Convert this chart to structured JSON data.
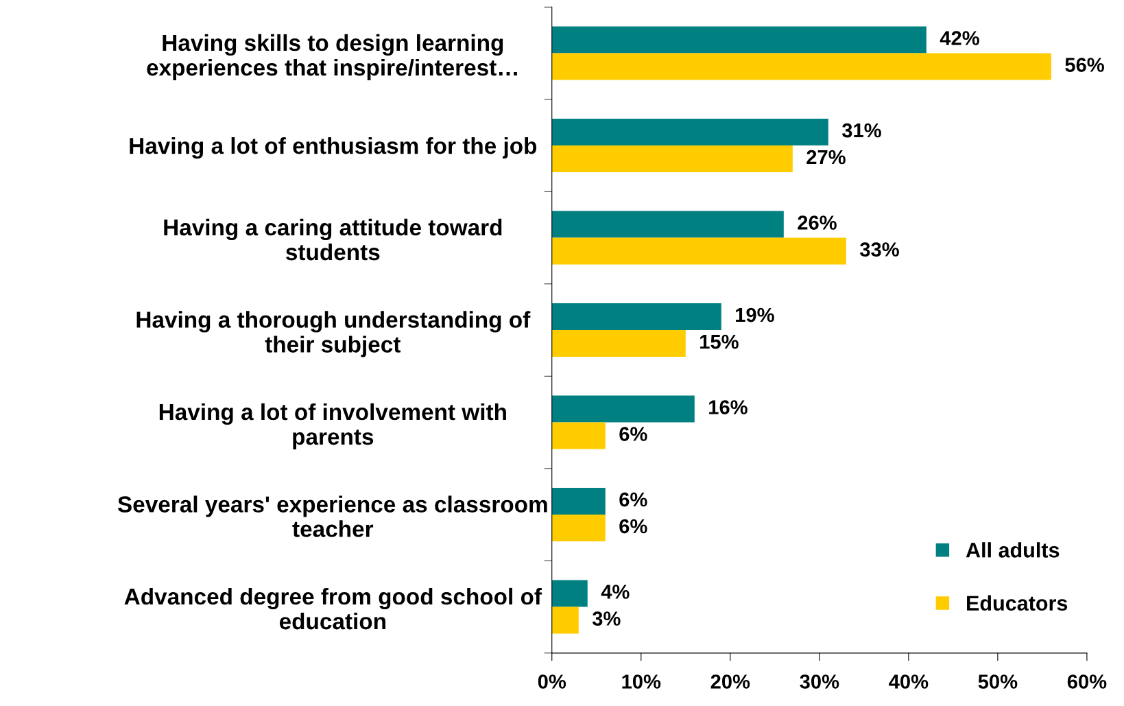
{
  "chart_data": {
    "type": "bar",
    "orientation": "horizontal",
    "categories": [
      "Having skills to design learning\nexperiences that inspire/interest…",
      "Having a lot of enthusiasm for the job",
      "Having a caring attitude toward\nstudents",
      "Having a thorough understanding of\ntheir subject",
      "Having a lot of involvement with\nparents",
      "Several years' experience as classroom\nteacher",
      "Advanced degree from good school of\neducation"
    ],
    "series": [
      {
        "name": "All adults",
        "color": "#008080",
        "values": [
          42,
          31,
          26,
          19,
          16,
          6,
          4
        ],
        "value_labels": [
          "42%",
          "31%",
          "26%",
          "19%",
          "16%",
          "6%",
          "4%"
        ]
      },
      {
        "name": "Educators",
        "color": "#ffcc00",
        "values": [
          56,
          27,
          33,
          15,
          6,
          6,
          3
        ],
        "value_labels": [
          "56%",
          "27%",
          "33%",
          "15%",
          "6%",
          "6%",
          "3%"
        ]
      }
    ],
    "xlim": [
      0,
      60
    ],
    "xticks": [
      {
        "value": 0,
        "label": "0%"
      },
      {
        "value": 10,
        "label": "10%"
      },
      {
        "value": 20,
        "label": "20%"
      },
      {
        "value": 30,
        "label": "30%"
      },
      {
        "value": 40,
        "label": "40%"
      },
      {
        "value": 50,
        "label": "50%"
      },
      {
        "value": 60,
        "label": "60%"
      }
    ],
    "legend": "bottom right",
    "grid": false
  }
}
